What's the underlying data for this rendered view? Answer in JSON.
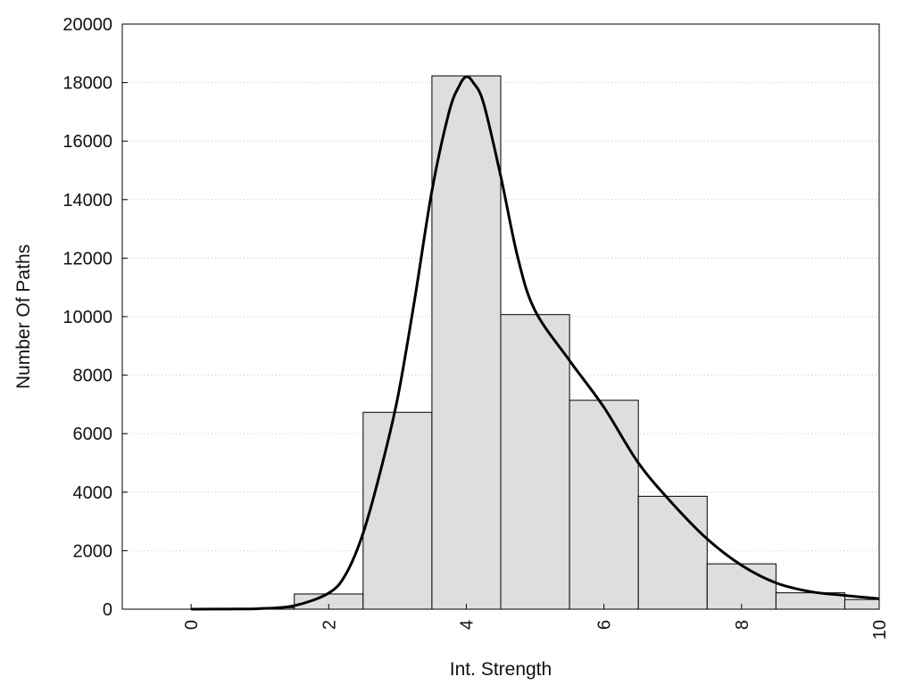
{
  "chart_data": {
    "type": "bar",
    "title": "",
    "xlabel": "Int. Strength",
    "ylabel": "Number Of Paths",
    "xlim": [
      -1,
      10
    ],
    "ylim": [
      0,
      20000
    ],
    "xticks": [
      0,
      2,
      4,
      6,
      8,
      10
    ],
    "yticks": [
      0,
      2000,
      4000,
      6000,
      8000,
      10000,
      12000,
      14000,
      16000,
      18000,
      20000
    ],
    "tick_label_rotation_x": -90,
    "grid": "horizontal dotted",
    "legend": "none",
    "bars": [
      {
        "x0": 0,
        "x1": 1,
        "value": 30
      },
      {
        "x0": 1,
        "x1": 1.5,
        "value": 50
      },
      {
        "x0": 1.5,
        "x1": 2.5,
        "value": 520
      },
      {
        "x0": 2.5,
        "x1": 3.5,
        "value": 6730
      },
      {
        "x0": 3.5,
        "x1": 4.5,
        "value": 18230
      },
      {
        "x0": 4.5,
        "x1": 5.5,
        "value": 10070
      },
      {
        "x0": 5.5,
        "x1": 6.5,
        "value": 7140
      },
      {
        "x0": 6.5,
        "x1": 7.5,
        "value": 3860
      },
      {
        "x0": 7.5,
        "x1": 8.5,
        "value": 1550
      },
      {
        "x0": 8.5,
        "x1": 9.5,
        "value": 560
      },
      {
        "x0": 9.5,
        "x1": 10,
        "value": 330
      }
    ],
    "series": [
      {
        "type": "line",
        "x": [
          0,
          0.5,
          1,
          1.5,
          2,
          2.25,
          2.5,
          2.75,
          3,
          3.25,
          3.5,
          3.75,
          3.9,
          4,
          4.1,
          4.25,
          4.5,
          4.75,
          5,
          5.5,
          6,
          6.5,
          7,
          7.5,
          8,
          8.5,
          9,
          9.5,
          10
        ],
        "y": [
          0,
          5,
          20,
          120,
          550,
          1200,
          2600,
          4700,
          7200,
          10600,
          14300,
          17000,
          17900,
          18200,
          18000,
          17300,
          14800,
          12000,
          10200,
          8500,
          6900,
          5000,
          3600,
          2400,
          1500,
          900,
          600,
          470,
          360
        ]
      }
    ]
  },
  "axes": {
    "x_title": "Int. Strength",
    "y_title": "Number Of Paths"
  },
  "colors": {
    "bar_fill": "#dedede",
    "bar_stroke": "#000000",
    "curve": "#000000",
    "grid": "#c8c8c8"
  }
}
